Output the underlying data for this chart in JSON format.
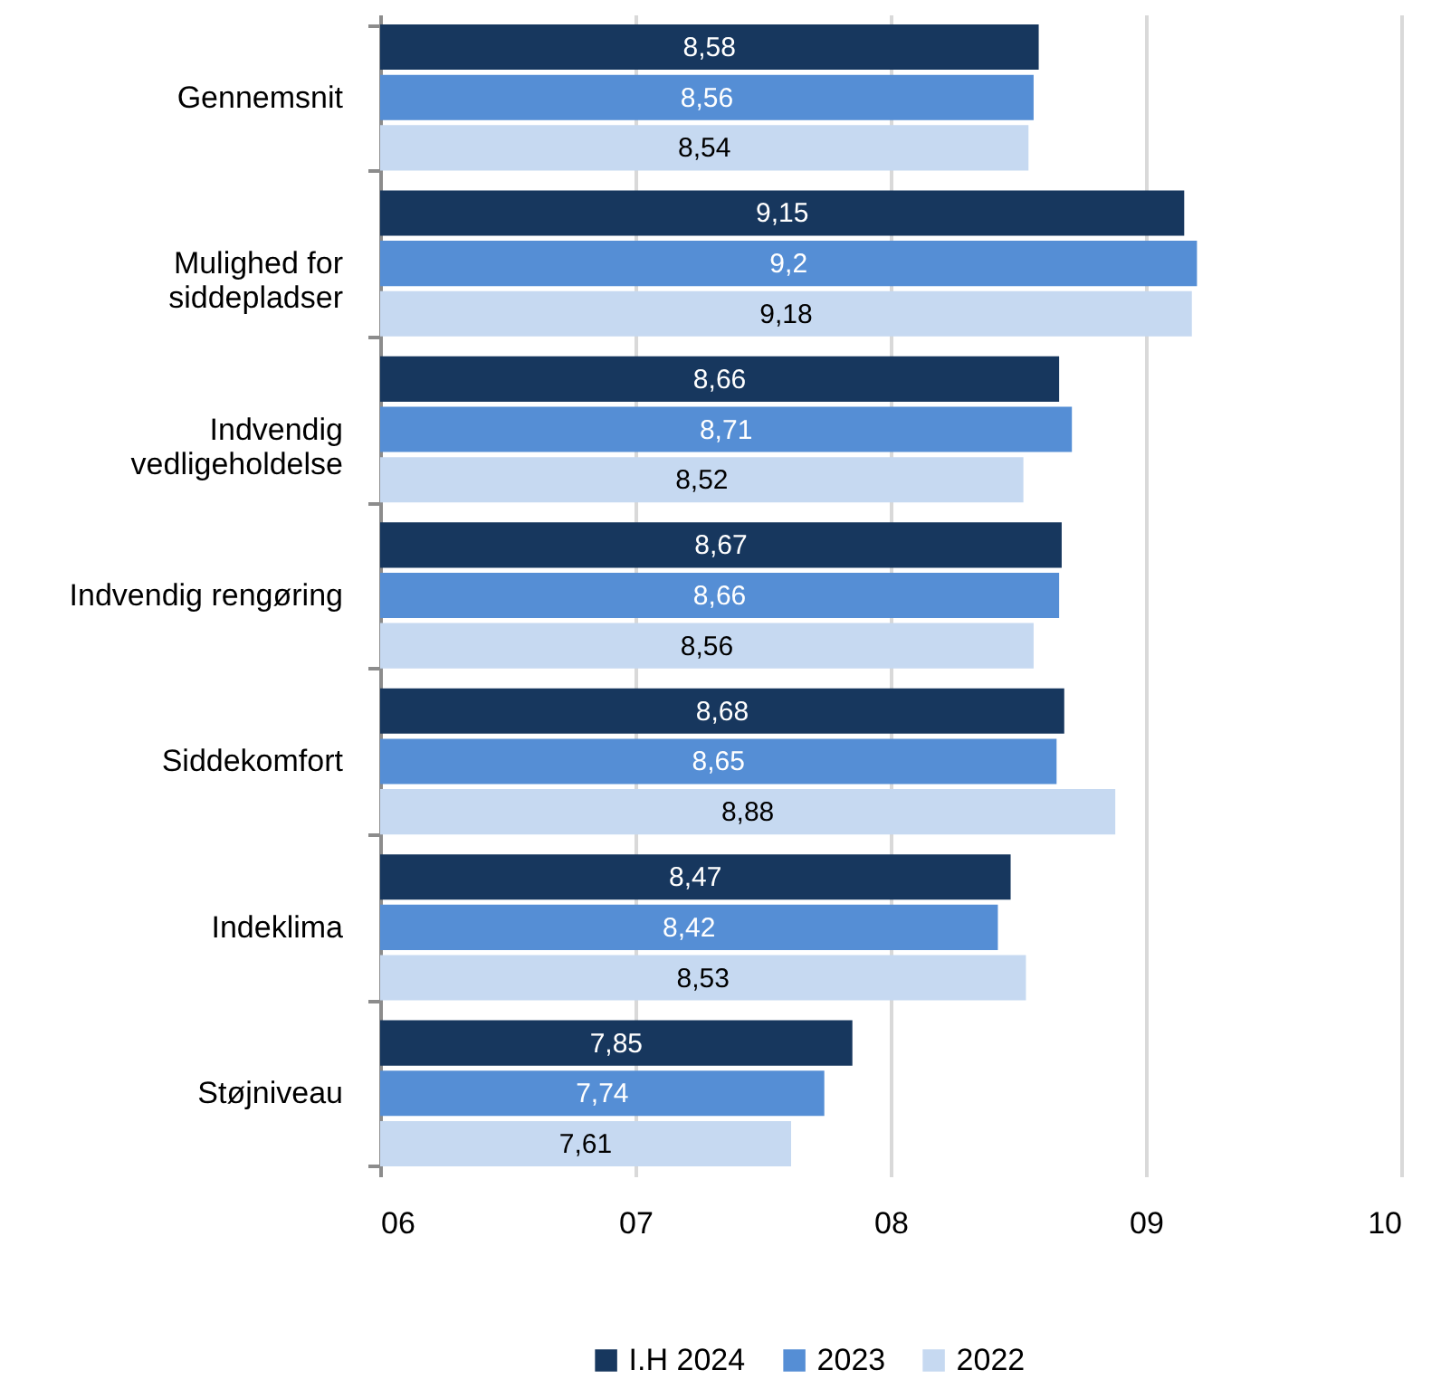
{
  "chart_data": {
    "type": "bar",
    "orientation": "horizontal",
    "categories": [
      "Gennemsnit",
      "Mulighed for siddepladser",
      "Indvendig vedligeholdelse",
      "Indvendig rengøring",
      "Siddekomfort",
      "Indeklima",
      "Støjniveau"
    ],
    "series": [
      {
        "name": "I.H 2024",
        "color": "#17375e",
        "values": [
          8.58,
          9.15,
          8.66,
          8.67,
          8.68,
          8.47,
          7.85
        ],
        "value_labels": [
          "8,58",
          "9,15",
          "8,66",
          "8,67",
          "8,68",
          "8,47",
          "7,85"
        ]
      },
      {
        "name": "2023",
        "color": "#558ed5",
        "values": [
          8.56,
          9.2,
          8.71,
          8.66,
          8.65,
          8.42,
          7.74
        ],
        "value_labels": [
          "8,56",
          "9,2",
          "8,71",
          "8,66",
          "8,65",
          "8,42",
          "7,74"
        ]
      },
      {
        "name": "2022",
        "color": "#c6d9f1",
        "values": [
          8.54,
          9.18,
          8.52,
          8.56,
          8.88,
          8.53,
          7.61
        ],
        "value_labels": [
          "8,54",
          "9,18",
          "8,52",
          "8,56",
          "8,88",
          "8,53",
          "7,61"
        ]
      }
    ],
    "xlim": [
      6,
      10
    ],
    "xticks": [
      {
        "value": 6,
        "label": "06"
      },
      {
        "value": 7,
        "label": "07"
      },
      {
        "value": 8,
        "label": "08"
      },
      {
        "value": 9,
        "label": "09"
      },
      10
    ],
    "grid": "x",
    "legend": "bottom"
  }
}
